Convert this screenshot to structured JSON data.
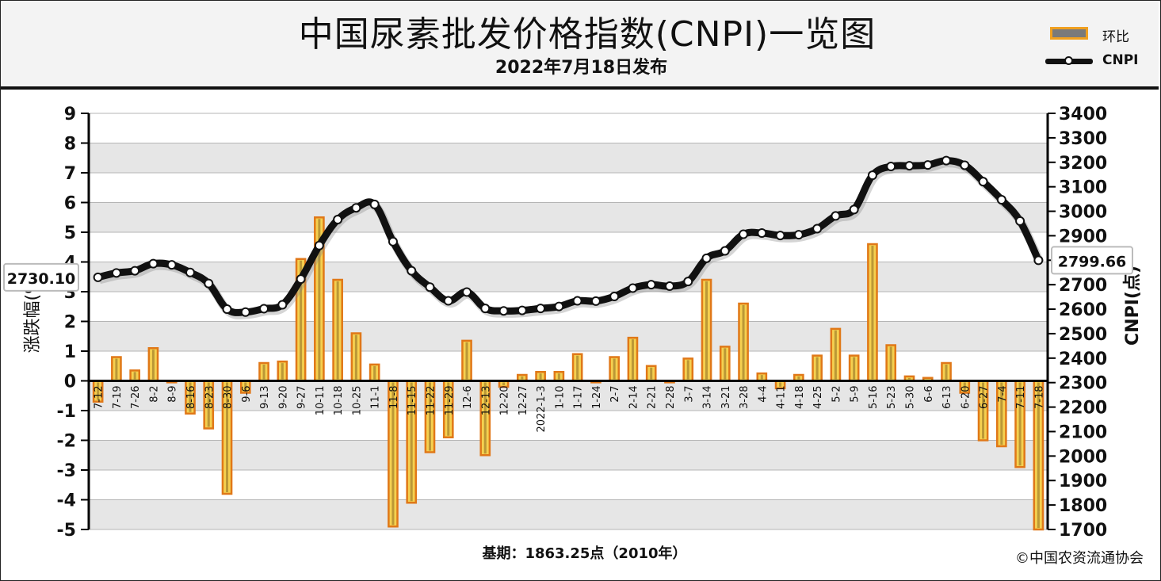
{
  "header": {
    "title": "中国尿素批发价格指数(CNPI)一览图",
    "subtitle": "2022年7月18日发布"
  },
  "legend": {
    "bar_label": "环比",
    "line_label": "CNPI"
  },
  "footer": {
    "base": "基期：1863.25点（2010年）",
    "copyright": "©中国农资流通协会"
  },
  "colors": {
    "bar_fill": "#f5d050",
    "bar_border": "#e07818",
    "bar_core": "#8a6a20",
    "line": "#111111",
    "grid_band": "#e6e6e6"
  },
  "chart_data": {
    "type": "bar+line",
    "categories": [
      "7-12",
      "7-19",
      "7-26",
      "8-2",
      "8-9",
      "8-16",
      "8-23",
      "8-30",
      "9-6",
      "9-13",
      "9-20",
      "9-27",
      "10-11",
      "10-18",
      "10-25",
      "11-1",
      "11-8",
      "11-15",
      "11-22",
      "11-29",
      "12-6",
      "12-13",
      "12-20",
      "12-27",
      "2022-1-3",
      "1-10",
      "1-17",
      "1-24",
      "2-7",
      "2-14",
      "2-21",
      "2-28",
      "3-7",
      "3-14",
      "3-21",
      "3-28",
      "4-4",
      "4-11",
      "4-18",
      "4-25",
      "5-2",
      "5-9",
      "5-16",
      "5-23",
      "5-30",
      "6-6",
      "6-13",
      "6-20",
      "6-27",
      "7-4",
      "7-11",
      "7-18"
    ],
    "series": [
      {
        "name": "环比",
        "axis": "left",
        "values": [
          -0.7,
          0.8,
          0.35,
          1.1,
          -0.05,
          -1.1,
          -1.6,
          -3.8,
          -0.4,
          0.6,
          0.65,
          4.1,
          5.5,
          3.4,
          1.6,
          0.55,
          -4.9,
          -4.1,
          -2.4,
          -1.9,
          1.35,
          -2.5,
          -0.2,
          0.2,
          0.3,
          0.3,
          0.9,
          -0.05,
          0.8,
          1.45,
          0.5,
          -0.05,
          0.75,
          3.4,
          1.15,
          2.6,
          0.25,
          -0.25,
          0.2,
          0.85,
          1.75,
          0.85,
          4.6,
          1.2,
          0.15,
          0.1,
          0.6,
          -0.4,
          -2.0,
          -2.2,
          -2.9,
          -5.0
        ]
      },
      {
        "name": "CNPI",
        "axis": "right",
        "values": [
          2730.1,
          2748,
          2757,
          2786,
          2781,
          2750,
          2705,
          2600,
          2588,
          2602,
          2618,
          2723,
          2860,
          2966,
          3014,
          3028,
          2876,
          2757,
          2690,
          2634,
          2670,
          2603,
          2593,
          2595,
          2603,
          2611,
          2634,
          2633,
          2652,
          2686,
          2700,
          2694,
          2713,
          2808,
          2838,
          2906,
          2911,
          2901,
          2904,
          2929,
          2981,
          3007,
          3147,
          3183,
          3186,
          3189,
          3207,
          3188,
          3121,
          3047,
          2960,
          2799.66
        ]
      }
    ],
    "left_axis": {
      "label": "涨跌幅(%)",
      "ylim": [
        -5,
        9
      ],
      "ticks": [
        "9",
        "8",
        "7",
        "6",
        "5",
        "4",
        "3",
        "2",
        "1",
        "0",
        "-1",
        "-2",
        "-3",
        "-4",
        "-5"
      ]
    },
    "right_axis": {
      "label": "CNPI(点)",
      "ylim": [
        1700,
        3400
      ],
      "ticks": [
        "3400",
        "3300",
        "3200",
        "3100",
        "3000",
        "2900",
        "2800",
        "2700",
        "2600",
        "2500",
        "2400",
        "2300",
        "2200",
        "2100",
        "2000",
        "1900",
        "1800",
        "1700"
      ]
    },
    "annotations": {
      "first_value": "2730.10",
      "last_value": "2799.66"
    },
    "grid": true,
    "legend_position": "top-right"
  }
}
